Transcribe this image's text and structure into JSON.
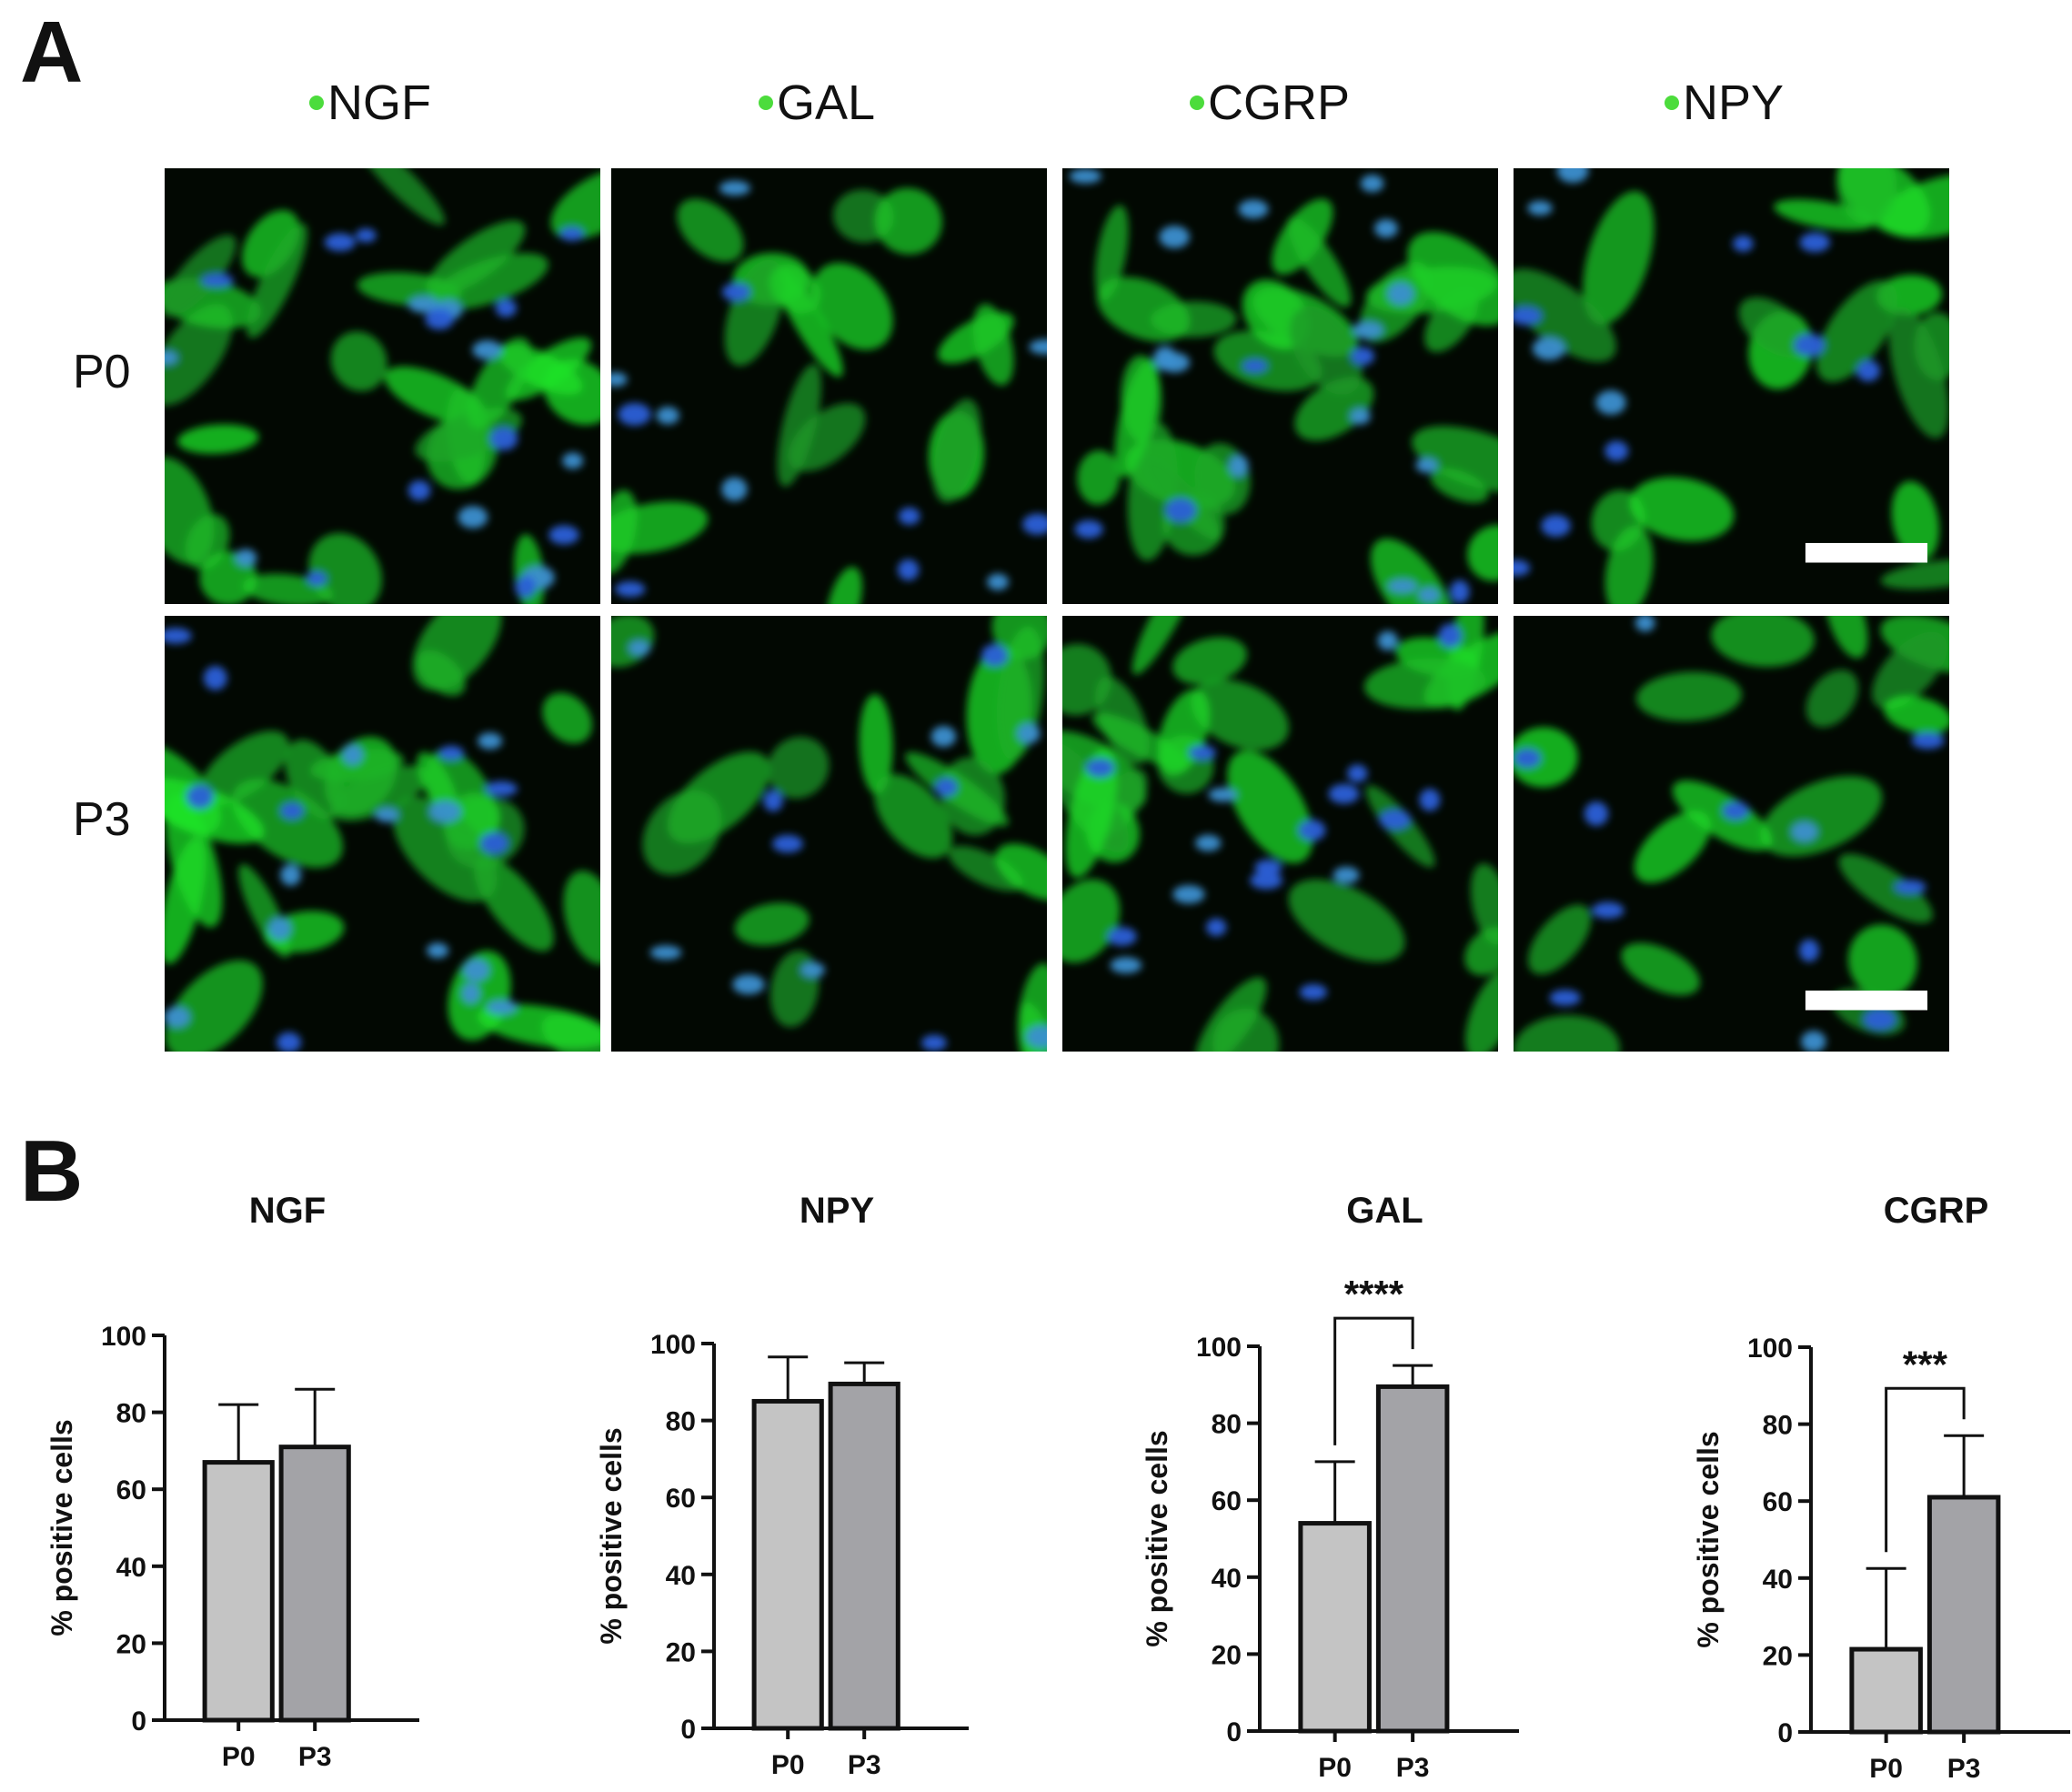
{
  "panel_a": {
    "letter": "A",
    "stain_color": "#4cdc3c",
    "columns": [
      "NGF",
      "GAL",
      "CGRP",
      "NPY"
    ],
    "rows": [
      "P0",
      "P3"
    ]
  },
  "panel_b": {
    "letter": "B"
  },
  "chart_data": [
    {
      "type": "bar",
      "title": "NGF",
      "xlabel": "",
      "ylabel": "% positive cells",
      "categories": [
        "P0",
        "P3"
      ],
      "values": [
        67,
        71
      ],
      "error": [
        15,
        15
      ],
      "ylim": [
        0,
        100
      ],
      "yticks": [
        0,
        20,
        40,
        60,
        80,
        100
      ],
      "colors": [
        "#c4c4c4",
        "#a3a3a7"
      ],
      "significance": ""
    },
    {
      "type": "bar",
      "title": "NPY",
      "xlabel": "",
      "ylabel": "% positive cells",
      "categories": [
        "P0",
        "P3"
      ],
      "values": [
        85,
        89.5
      ],
      "error": [
        11.5,
        5.5
      ],
      "ylim": [
        0,
        100
      ],
      "yticks": [
        0,
        20,
        40,
        60,
        80,
        100
      ],
      "colors": [
        "#c4c4c4",
        "#a3a3a7"
      ],
      "significance": ""
    },
    {
      "type": "bar",
      "title": "GAL",
      "xlabel": "",
      "ylabel": "% positive cells",
      "categories": [
        "P0",
        "P3"
      ],
      "values": [
        54,
        89.5
      ],
      "error": [
        16,
        5.5
      ],
      "ylim": [
        0,
        100
      ],
      "yticks": [
        0,
        20,
        40,
        60,
        80,
        100
      ],
      "colors": [
        "#c4c4c4",
        "#a3a3a7"
      ],
      "significance": "****"
    },
    {
      "type": "bar",
      "title": "CGRP",
      "xlabel": "",
      "ylabel": "% positive cells",
      "categories": [
        "P0",
        "P3"
      ],
      "values": [
        21.5,
        61
      ],
      "error": [
        21,
        16
      ],
      "ylim": [
        0,
        100
      ],
      "yticks": [
        0,
        20,
        40,
        60,
        80,
        100
      ],
      "colors": [
        "#c4c4c4",
        "#a3a3a7"
      ],
      "significance": "***"
    }
  ]
}
